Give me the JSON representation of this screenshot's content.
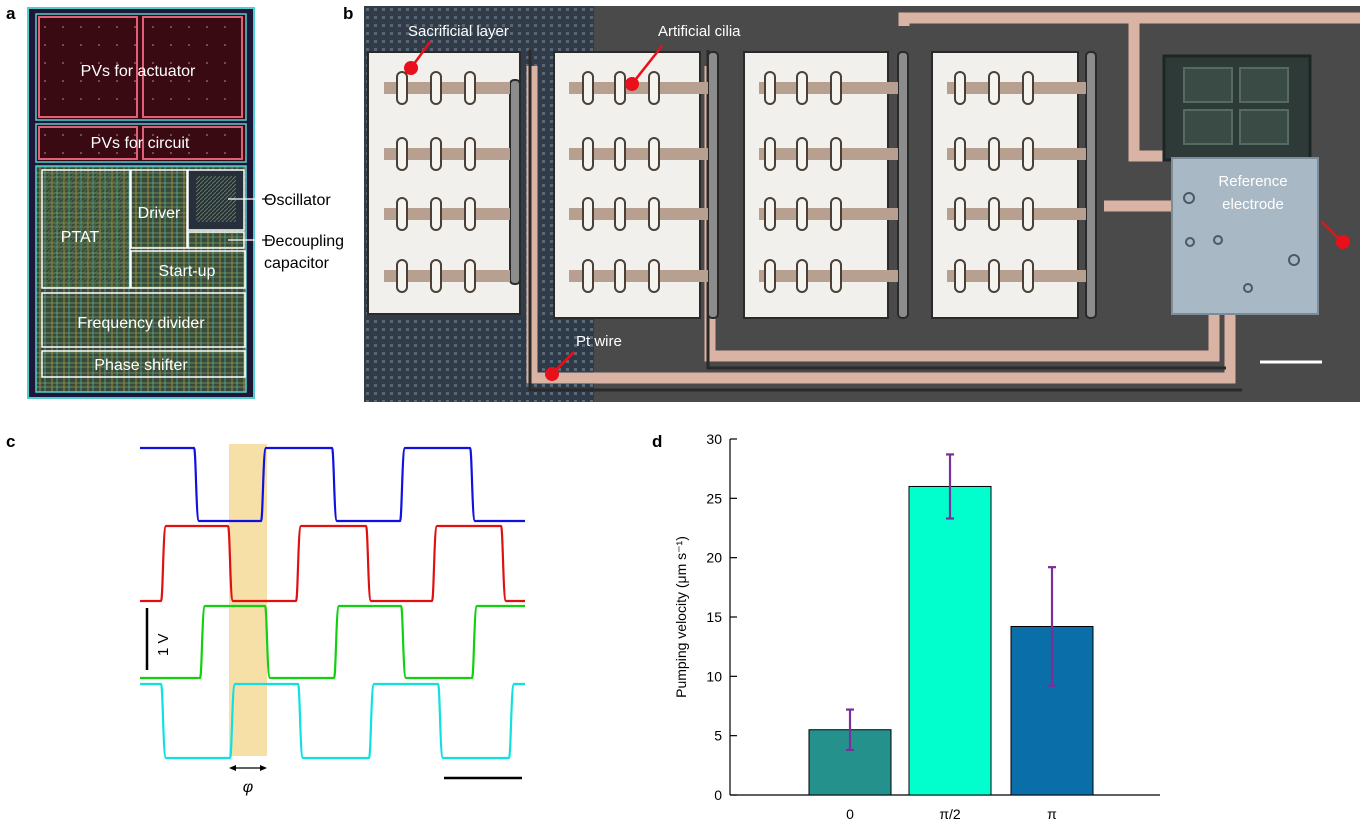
{
  "panel_labels": {
    "a": "a",
    "b": "b",
    "c": "c",
    "d": "d"
  },
  "panel_a": {
    "blocks": {
      "pvs_actuator": "PVs for actuator",
      "pvs_circuit": "PVs for circuit",
      "ptat": "PTAT",
      "driver": "Driver",
      "startup": "Start-up",
      "freq_divider": "Frequency divider",
      "phase_shifter": "Phase shifter"
    },
    "callouts": {
      "oscillator": "Oscillator",
      "decoupling_1": "Decoupling",
      "decoupling_2": "capacitor"
    },
    "colors": {
      "chip_bg": "#1f1738",
      "pv_fill": "#3a0a12",
      "pv_border": "#e0607a",
      "wire": "#4fd0d0"
    }
  },
  "panel_b": {
    "labels": {
      "sacrificial": "Sacrificial layer",
      "cilia": "Artificial cilia",
      "pt_wire": "Pt wire",
      "ref_1": "Reference",
      "ref_2": "electrode"
    },
    "colors": {
      "substrate": "#4a4a4a",
      "wire": "#d9b3a3",
      "pad": "#f2f0ec",
      "marker": "#e8101a",
      "electrode": "#a8b8c4"
    }
  },
  "panel_c": {
    "scale_label": "1 V",
    "phase_symbol": "φ",
    "traces": [
      {
        "color": "#1010e0",
        "phase": "0"
      },
      {
        "color": "#e01010",
        "phase": "π/2"
      },
      {
        "color": "#10d010",
        "phase": "π"
      },
      {
        "color": "#10e0e0",
        "phase": "3π/2"
      }
    ],
    "highlight_color": "#f7dfa8"
  },
  "chart_data": {
    "type": "bar",
    "categories": [
      "0",
      "π/2",
      "π"
    ],
    "values": [
      5.5,
      26.0,
      14.2
    ],
    "errors": [
      1.7,
      2.7,
      5.0
    ],
    "colors": [
      "#25918d",
      "#00ffcc",
      "#0a6fa8"
    ],
    "error_color": "#7a2f9a",
    "ylabel": "Pumping velocity (μm s⁻¹)",
    "ylim": [
      0,
      30
    ],
    "yticks": [
      0,
      5,
      10,
      15,
      20,
      25,
      30
    ],
    "grid": false
  }
}
